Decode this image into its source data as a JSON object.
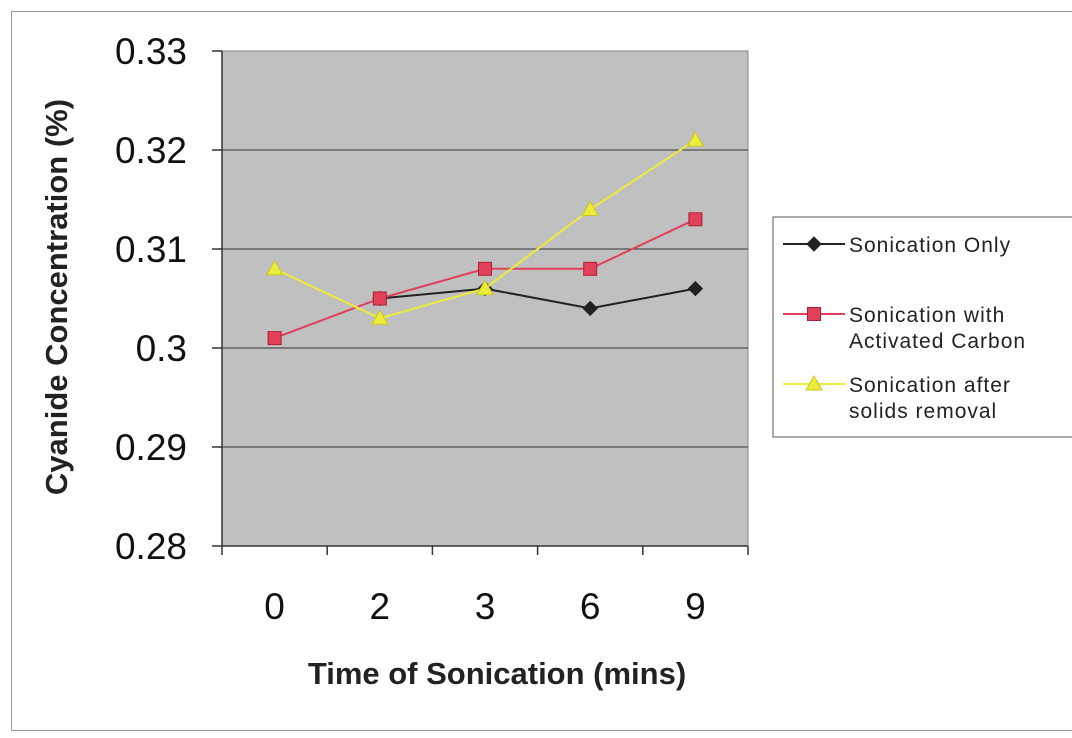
{
  "chart_data": {
    "type": "line",
    "xlabel": "Time of Sonication (mins)",
    "ylabel": "Cyanide Concentration (%)",
    "categories": [
      "0",
      "2",
      "3",
      "6",
      "9"
    ],
    "ylim": [
      0.28,
      0.33
    ],
    "yticks": [
      "0.28",
      "0.29",
      "0.3",
      "0.31",
      "0.32",
      "0.33"
    ],
    "ytick_values": [
      0.28,
      0.29,
      0.3,
      0.31,
      0.32,
      0.33
    ],
    "grid": true,
    "plot_background": "#c0c0c0",
    "legend_position": "right",
    "series": [
      {
        "name": "Sonication Only",
        "marker": "diamond",
        "color": "#222222",
        "values": [
          null,
          0.305,
          0.306,
          0.304,
          0.306
        ]
      },
      {
        "name": "Sonication with Activated Carbon",
        "legend_lines": [
          "Sonication with",
          "Activated Carbon"
        ],
        "marker": "square",
        "color": "#e0405a",
        "values": [
          0.301,
          0.305,
          0.308,
          0.308,
          0.313
        ]
      },
      {
        "name": "Sonication after solids removal",
        "legend_lines": [
          "Sonication after",
          "solids removal"
        ],
        "marker": "triangle",
        "color": "#ecec3a",
        "values": [
          0.308,
          0.303,
          0.306,
          0.314,
          0.321
        ]
      }
    ]
  }
}
